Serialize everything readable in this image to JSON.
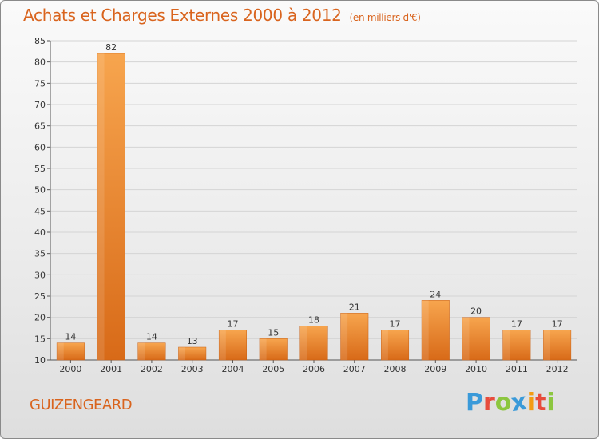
{
  "header": {
    "title": "Achats et Charges Externes 2000 à 2012",
    "unit": "(en milliers d'€)"
  },
  "footer": {
    "commune": "GUIZENGEARD",
    "logo_letters": [
      "P",
      "r",
      "o",
      "x",
      "i",
      "t",
      "i"
    ],
    "logo_colors": [
      "#3a9ad9",
      "#e74c3c",
      "#8cc63f",
      "#3a9ad9",
      "#f39c12",
      "#e74c3c",
      "#8cc63f"
    ]
  },
  "colors": {
    "bar_light": "#f7a54e",
    "bar_dark": "#d86a18",
    "grid": "#d4d4d4"
  },
  "chart_data": {
    "type": "bar",
    "title": "Achats et Charges Externes 2000 à 2012",
    "xlabel": "",
    "ylabel": "",
    "ylim": [
      10,
      85
    ],
    "yticks": [
      10,
      15,
      20,
      25,
      30,
      35,
      40,
      45,
      50,
      55,
      60,
      65,
      70,
      75,
      80,
      85
    ],
    "grid": true,
    "categories": [
      "2000",
      "2001",
      "2002",
      "2003",
      "2004",
      "2005",
      "2006",
      "2007",
      "2008",
      "2009",
      "2010",
      "2011",
      "2012"
    ],
    "values": [
      14,
      82,
      14,
      13,
      17,
      15,
      18,
      21,
      17,
      24,
      20,
      17,
      17
    ]
  }
}
